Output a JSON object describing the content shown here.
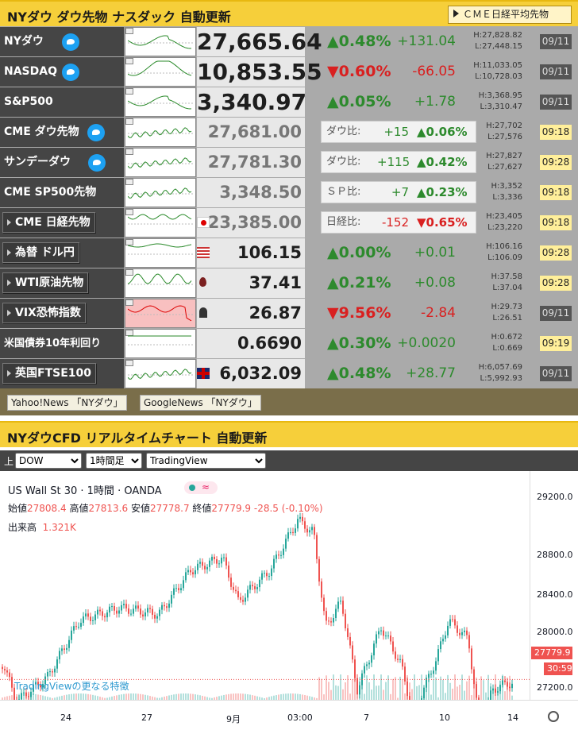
{
  "header1": {
    "title": "NYダウ ダウ先物 ナスダック 自動更新",
    "cme_btn": "ＣＭＥ日経平均先物"
  },
  "rows": [
    {
      "name": "NYダウ",
      "twitter": true,
      "value": "27,665.64",
      "pct": "▲0.48%",
      "chg": "+131.04",
      "high": "H:27,828.82",
      "low": "L:27,448.15",
      "date": "09/11",
      "trend": "up"
    },
    {
      "name": "NASDAQ",
      "twitter": true,
      "value": "10,853.55",
      "pct": "▼0.60%",
      "chg": "-66.05",
      "high": "H:11,033.05",
      "low": "L:10,728.03",
      "date": "09/11",
      "trend": "down"
    },
    {
      "name": "S&P500",
      "twitter": false,
      "value": "3,340.97",
      "pct": "▲0.05%",
      "chg": "+1.78",
      "high": "H:3,368.95",
      "low": "L:3,310.47",
      "date": "09/11",
      "trend": "up"
    },
    {
      "name": "CME ダウ先物",
      "twitter": true,
      "value": "27,681.00",
      "cmp_label": "ダウ比:",
      "cmp_diff": "+15",
      "cmp_pct": "▲0.06%",
      "high": "H:27,702",
      "low": "L:27,576",
      "date": "09:18",
      "trend": "up"
    },
    {
      "name": "サンデーダウ",
      "twitter": true,
      "value": "27,781.30",
      "cmp_label": "ダウ比:",
      "cmp_diff": "+115",
      "cmp_pct": "▲0.42%",
      "high": "H:27,827",
      "low": "L:27,627",
      "date": "09:28",
      "trend": "up"
    },
    {
      "name": "CME SP500先物",
      "twitter": false,
      "value": "3,348.50",
      "cmp_label": "ＳＰ比:",
      "cmp_diff": "+7",
      "cmp_pct": "▲0.23%",
      "high": "H:3,352",
      "low": "L:3,336",
      "date": "09:18",
      "trend": "up"
    },
    {
      "name": "CME 日経先物",
      "boxed": true,
      "value": "23,385.00",
      "cmp_label": "日経比:",
      "cmp_diff": "-152",
      "cmp_pct": "▼0.65%",
      "high": "H:23,405",
      "low": "L:23,220",
      "date": "09:18",
      "trend": "down"
    },
    {
      "name": "為替 ドル円",
      "boxed": true,
      "value": "106.15",
      "pct": "▲0.00%",
      "chg": "+0.01",
      "high": "H:106.16",
      "low": "L:106.09",
      "date": "09:28",
      "trend": "up"
    },
    {
      "name": "WTI原油先物",
      "boxed": true,
      "value": "37.41",
      "pct": "▲0.21%",
      "chg": "+0.08",
      "high": "H:37.58",
      "low": "L:37.04",
      "date": "09:28",
      "trend": "up"
    },
    {
      "name": "VIX恐怖指数",
      "boxed": true,
      "value": "26.87",
      "pct": "▼9.56%",
      "chg": "-2.84",
      "high": "H:29.73",
      "low": "L:26.51",
      "date": "09/11",
      "trend": "down"
    },
    {
      "name": "米国債券10年利回り",
      "value": "0.6690",
      "pct": "▲0.30%",
      "chg": "+0.0020",
      "high": "H:0.672",
      "low": "L:0.669",
      "date": "09:19",
      "trend": "up"
    },
    {
      "name": "英国FTSE100",
      "boxed": true,
      "value": "6,032.09",
      "pct": "▲0.48%",
      "chg": "+28.77",
      "high": "H:6,057.69",
      "low": "L:5,992.93",
      "date": "09/11",
      "trend": "up"
    }
  ],
  "news": [
    "Yahoo!News 「NYダウ」",
    "GoogleNews 「NYダウ」"
  ],
  "header2": {
    "title": "NYダウCFD リアルタイムチャート 自動更新"
  },
  "controls": {
    "label": "上",
    "symbol": "DOW",
    "interval": "1時間足",
    "provider": "TradingView"
  },
  "tv": {
    "symbol_line": "US Wall St 30 · 1時間 · OANDA",
    "open_label": "始値",
    "open": "27808.4",
    "high_label": "高値",
    "high": "27813.6",
    "low_label": "安値",
    "low": "27778.7",
    "close_label": "終値",
    "close": "27779.9",
    "change": "-28.5 (-0.10%)",
    "vol_label": "出来高",
    "vol": "1.321K",
    "y_ticks": [
      "29200.0",
      "28800.0",
      "28400.0",
      "28000.0",
      "27200.0"
    ],
    "x_ticks": [
      "24",
      "27",
      "9月",
      "03:00",
      "7",
      "10",
      "14"
    ],
    "price_tag": "27779.9",
    "countdown": "30:59",
    "promo": "TradingViewの更なる特徴",
    "colors": {
      "up": "#26a69a",
      "down": "#ef5350"
    }
  }
}
